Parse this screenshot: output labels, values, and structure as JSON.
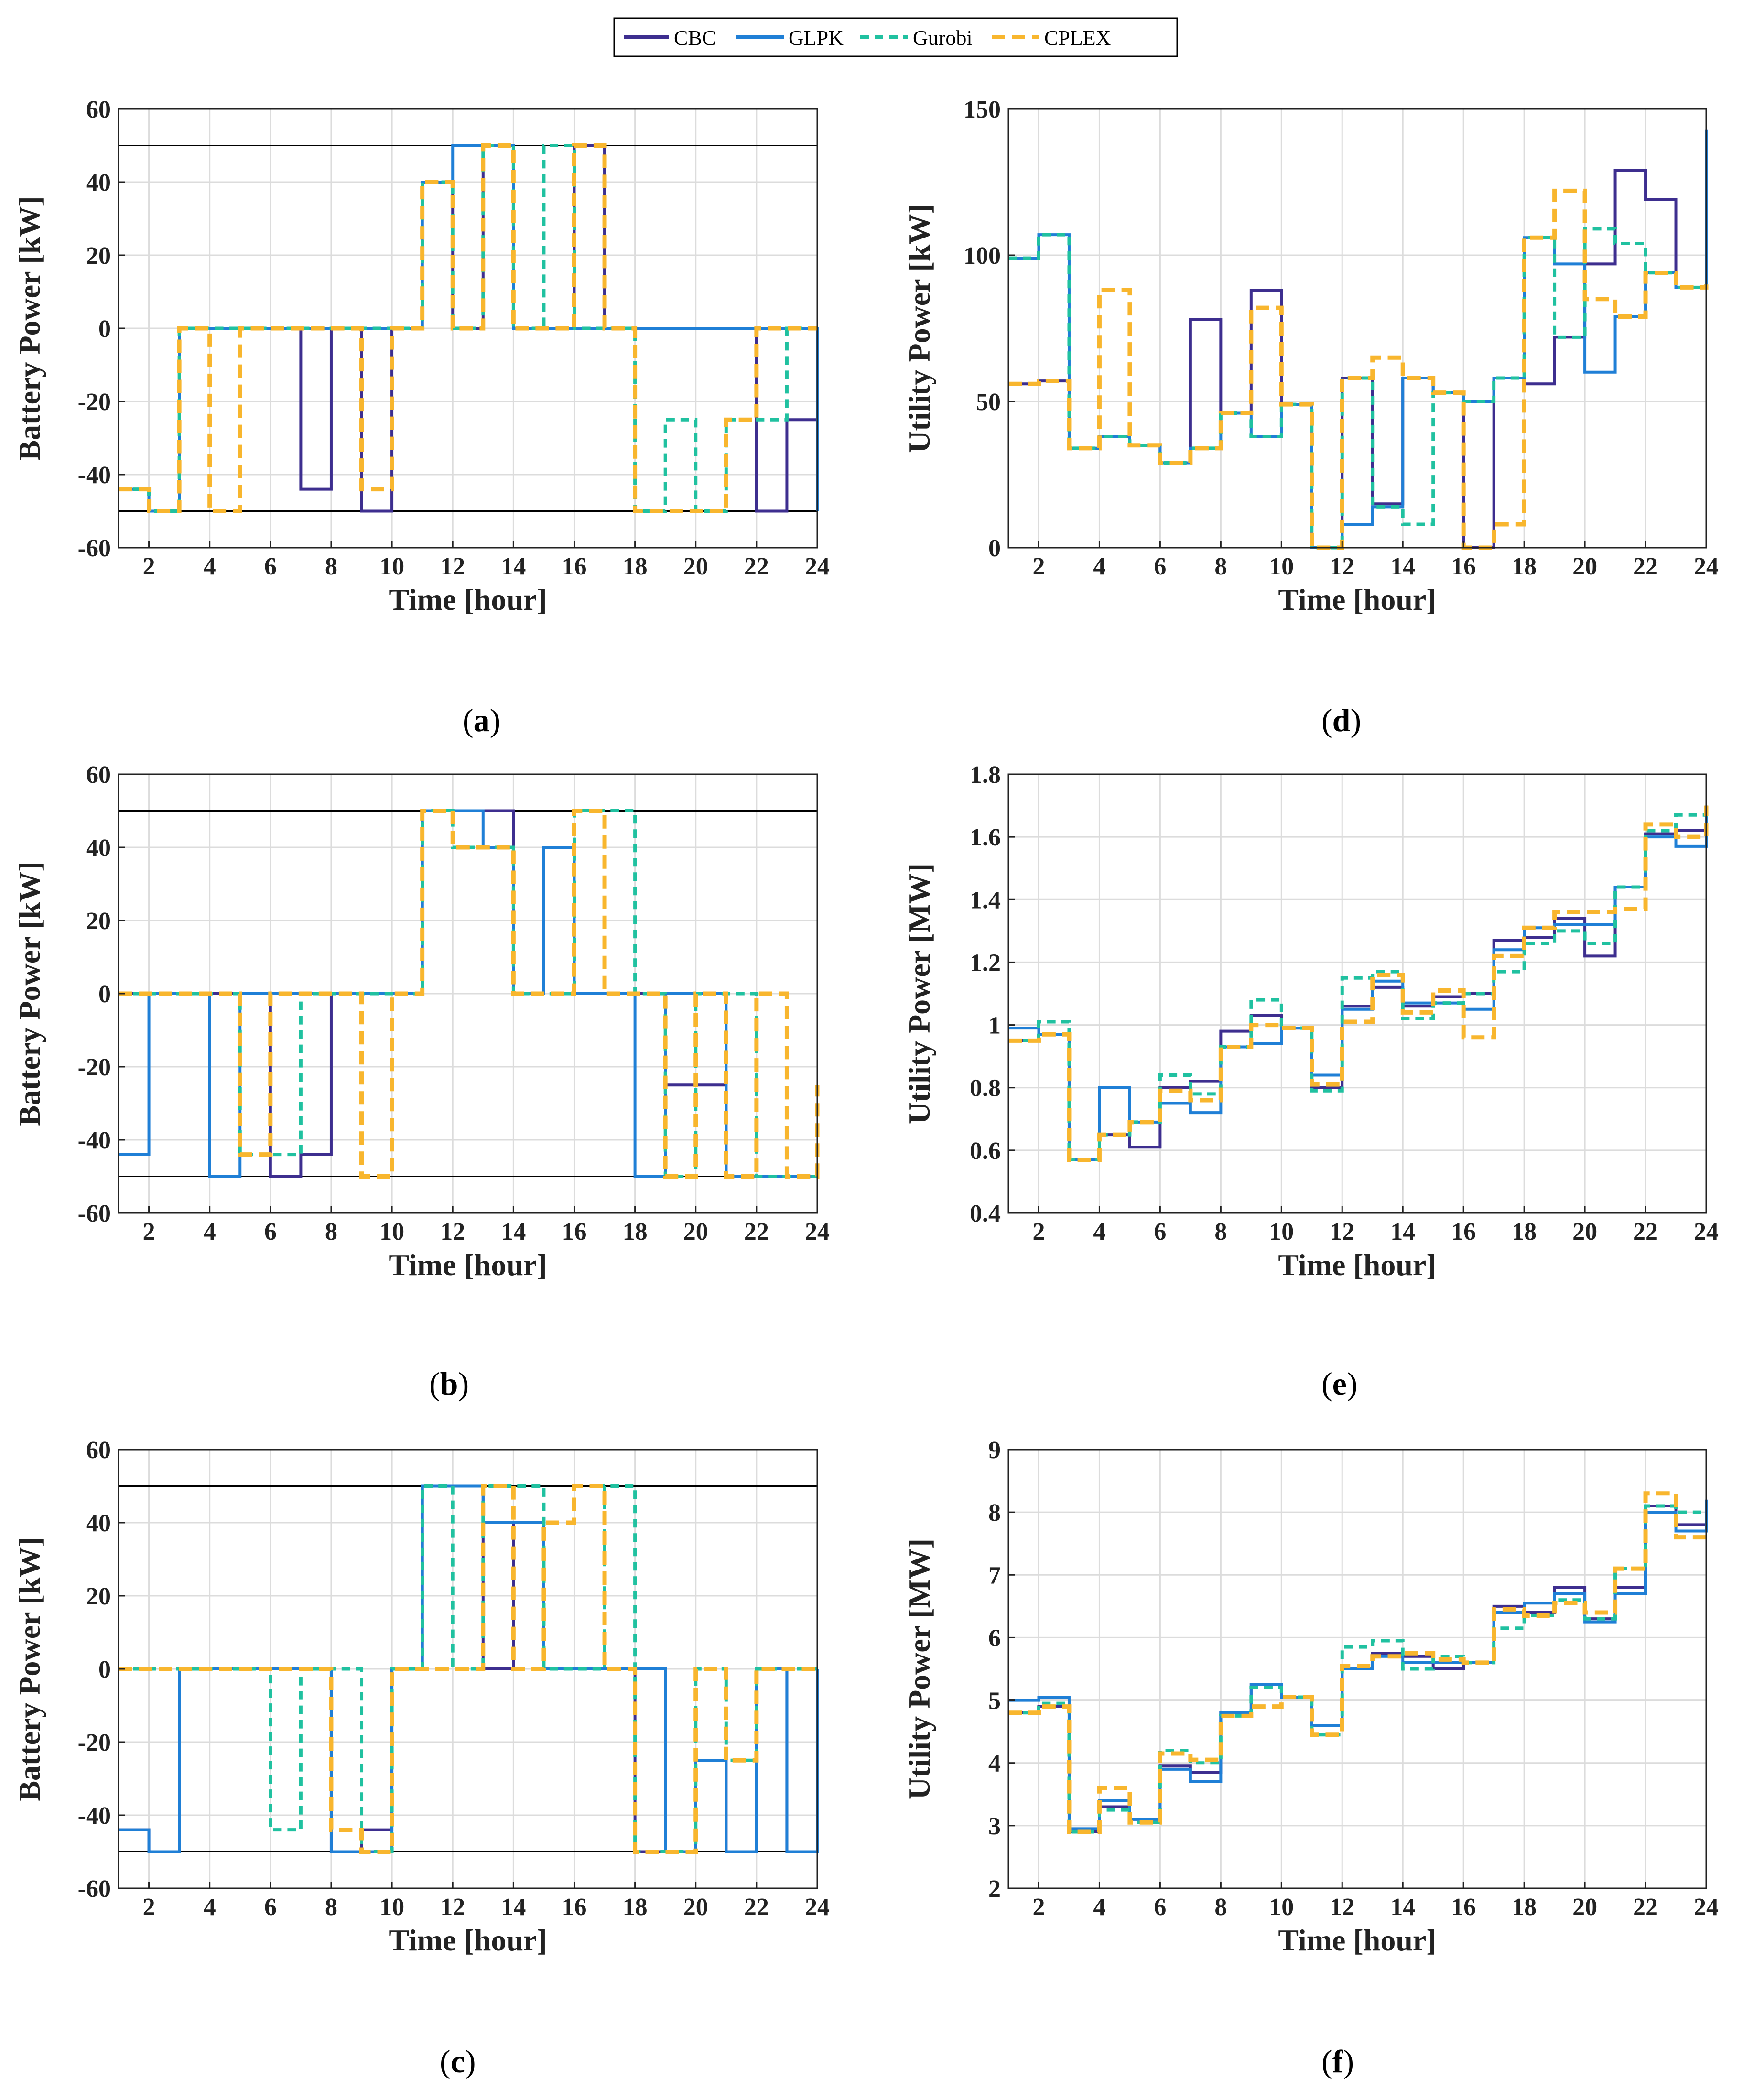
{
  "colors": {
    "CBC": "#3d2e8f",
    "GLPK": "#1f7fd6",
    "Gurobi": "#20c1a0",
    "CPLEX": "#f8b62e",
    "limit": "#000000",
    "grid": "#dcdcdc"
  },
  "legend": [
    {
      "key": "CBC",
      "label": "CBC",
      "dash": "solid"
    },
    {
      "key": "GLPK",
      "label": "GLPK",
      "dash": "solid"
    },
    {
      "key": "Gurobi",
      "label": "Gurobi",
      "dash": "dashed"
    },
    {
      "key": "CPLEX",
      "label": "CPLEX",
      "dash": "dashed"
    }
  ],
  "chart_data": [
    {
      "id": "a",
      "type": "line",
      "step": true,
      "caption_letter": "a",
      "caption": "(a)",
      "xlabel": "Time [hour]",
      "ylabel": "Battery Power [kW]",
      "xlim": [
        1,
        24
      ],
      "ylim": [
        -60,
        60
      ],
      "xticks": [
        2,
        4,
        6,
        8,
        10,
        12,
        14,
        16,
        18,
        20,
        22,
        24
      ],
      "yticks": [
        -60,
        -40,
        -20,
        0,
        20,
        40,
        60
      ],
      "ytick_labels": [
        "-60",
        "-40",
        "-20",
        "0",
        "20",
        "40",
        "60"
      ],
      "limits": [
        50,
        -50
      ],
      "x": [
        1,
        2,
        3,
        4,
        5,
        6,
        7,
        8,
        9,
        10,
        11,
        12,
        13,
        14,
        15,
        16,
        17,
        18,
        19,
        20,
        21,
        22,
        23,
        24
      ],
      "series": [
        {
          "name": "CBC",
          "values": [
            -44,
            -50,
            0,
            0,
            0,
            0,
            -44,
            0,
            -50,
            0,
            40,
            0,
            50,
            0,
            0,
            50,
            0,
            0,
            0,
            0,
            0,
            -50,
            -25,
            -50
          ]
        },
        {
          "name": "GLPK",
          "values": [
            -44,
            -50,
            0,
            0,
            0,
            0,
            0,
            0,
            0,
            0,
            40,
            50,
            50,
            0,
            0,
            0,
            0,
            0,
            0,
            0,
            0,
            0,
            0,
            -50
          ]
        },
        {
          "name": "Gurobi",
          "values": [
            -44,
            -50,
            0,
            0,
            0,
            0,
            0,
            0,
            0,
            0,
            40,
            0,
            50,
            0,
            50,
            0,
            0,
            -50,
            -25,
            -50,
            -25,
            -25,
            0,
            0
          ]
        },
        {
          "name": "CPLEX",
          "values": [
            -44,
            -50,
            0,
            -50,
            0,
            0,
            0,
            0,
            -44,
            0,
            40,
            0,
            50,
            0,
            0,
            50,
            0,
            -50,
            -50,
            -50,
            -25,
            0,
            0,
            0
          ]
        }
      ]
    },
    {
      "id": "b",
      "type": "line",
      "step": true,
      "caption_letter": "b",
      "caption": "(b)",
      "xlabel": "Time [hour]",
      "ylabel": "Battery Power [kW]",
      "xlim": [
        1,
        24
      ],
      "ylim": [
        -60,
        60
      ],
      "xticks": [
        2,
        4,
        6,
        8,
        10,
        12,
        14,
        16,
        18,
        20,
        22,
        24
      ],
      "yticks": [
        -60,
        -40,
        -20,
        0,
        20,
        40,
        60
      ],
      "ytick_labels": [
        "-60",
        "-40",
        "-20",
        "0",
        "20",
        "40",
        "60"
      ],
      "limits": [
        50,
        -50
      ],
      "x": [
        1,
        2,
        3,
        4,
        5,
        6,
        7,
        8,
        9,
        10,
        11,
        12,
        13,
        14,
        15,
        16,
        17,
        18,
        19,
        20,
        21,
        22,
        23,
        24
      ],
      "series": [
        {
          "name": "CBC",
          "values": [
            0,
            0,
            0,
            0,
            0,
            -50,
            -44,
            0,
            0,
            0,
            50,
            50,
            50,
            0,
            40,
            0,
            0,
            0,
            -25,
            -25,
            -50,
            -50,
            -50,
            -50
          ]
        },
        {
          "name": "GLPK",
          "values": [
            -44,
            0,
            0,
            -50,
            0,
            0,
            0,
            0,
            0,
            0,
            50,
            50,
            40,
            0,
            40,
            0,
            0,
            -50,
            0,
            0,
            -50,
            -50,
            -50,
            -50
          ]
        },
        {
          "name": "Gurobi",
          "values": [
            0,
            0,
            0,
            0,
            -44,
            -44,
            0,
            0,
            0,
            0,
            50,
            40,
            40,
            0,
            0,
            50,
            50,
            0,
            -50,
            0,
            0,
            -50,
            -50,
            -50
          ]
        },
        {
          "name": "CPLEX",
          "values": [
            0,
            0,
            0,
            0,
            -44,
            0,
            0,
            0,
            -50,
            0,
            50,
            40,
            40,
            0,
            0,
            50,
            0,
            0,
            -50,
            0,
            -50,
            0,
            -50,
            -25
          ]
        }
      ]
    },
    {
      "id": "c",
      "type": "line",
      "step": true,
      "caption_letter": "c",
      "caption": "(c)",
      "xlabel": "Time [hour]",
      "ylabel": "Battery Power [kW]",
      "xlim": [
        1,
        24
      ],
      "ylim": [
        -60,
        60
      ],
      "xticks": [
        2,
        4,
        6,
        8,
        10,
        12,
        14,
        16,
        18,
        20,
        22,
        24
      ],
      "yticks": [
        -60,
        -40,
        -20,
        0,
        20,
        40,
        60
      ],
      "ytick_labels": [
        "-60",
        "-40",
        "-20",
        "0",
        "20",
        "40",
        "60"
      ],
      "limits": [
        50,
        -50
      ],
      "x": [
        1,
        2,
        3,
        4,
        5,
        6,
        7,
        8,
        9,
        10,
        11,
        12,
        13,
        14,
        15,
        16,
        17,
        18,
        19,
        20,
        21,
        22,
        23,
        24
      ],
      "series": [
        {
          "name": "CBC",
          "values": [
            -44,
            -50,
            0,
            0,
            0,
            0,
            0,
            -50,
            -44,
            0,
            50,
            50,
            0,
            40,
            0,
            0,
            0,
            -50,
            -50,
            -25,
            -50,
            0,
            -50,
            0
          ]
        },
        {
          "name": "GLPK",
          "values": [
            -44,
            -50,
            0,
            0,
            0,
            0,
            0,
            -50,
            -50,
            0,
            50,
            50,
            40,
            40,
            0,
            0,
            0,
            0,
            -50,
            -25,
            -50,
            0,
            -50,
            0
          ]
        },
        {
          "name": "Gurobi",
          "values": [
            0,
            0,
            0,
            0,
            0,
            -44,
            0,
            0,
            -50,
            0,
            50,
            0,
            50,
            50,
            0,
            0,
            50,
            -50,
            -50,
            0,
            -25,
            0,
            0,
            0
          ]
        },
        {
          "name": "CPLEX",
          "values": [
            0,
            0,
            0,
            0,
            0,
            0,
            0,
            -44,
            -50,
            0,
            0,
            0,
            50,
            0,
            40,
            50,
            0,
            -50,
            -50,
            0,
            -25,
            0,
            0,
            0
          ]
        }
      ]
    },
    {
      "id": "d",
      "type": "line",
      "step": true,
      "caption_letter": "d",
      "caption": "(d)",
      "xlabel": "Time [hour]",
      "ylabel": "Utility Power [kW]",
      "xlim": [
        1,
        24
      ],
      "ylim": [
        0,
        150
      ],
      "xticks": [
        2,
        4,
        6,
        8,
        10,
        12,
        14,
        16,
        18,
        20,
        22,
        24
      ],
      "yticks": [
        0,
        50,
        100,
        150
      ],
      "ytick_labels": [
        "0",
        "50",
        "100",
        "150"
      ],
      "limits": [],
      "x": [
        1,
        2,
        3,
        4,
        5,
        6,
        7,
        8,
        9,
        10,
        11,
        12,
        13,
        14,
        15,
        16,
        17,
        18,
        19,
        20,
        21,
        22,
        23,
        24
      ],
      "series": [
        {
          "name": "CBC",
          "values": [
            56,
            57,
            34,
            38,
            35,
            29,
            78,
            46,
            88,
            49,
            0,
            58,
            15,
            58,
            53,
            0,
            58,
            56,
            72,
            97,
            129,
            119,
            89,
            143
          ]
        },
        {
          "name": "GLPK",
          "values": [
            99,
            107,
            34,
            38,
            35,
            29,
            34,
            46,
            38,
            49,
            0,
            8,
            14,
            58,
            53,
            50,
            58,
            106,
            97,
            60,
            79,
            94,
            89,
            143
          ]
        },
        {
          "name": "Gurobi",
          "values": [
            99,
            107,
            34,
            38,
            35,
            29,
            34,
            46,
            38,
            49,
            0,
            58,
            14,
            8,
            53,
            50,
            58,
            106,
            72,
            109,
            104,
            94,
            89,
            90
          ]
        },
        {
          "name": "CPLEX",
          "values": [
            56,
            57,
            34,
            88,
            35,
            29,
            34,
            46,
            82,
            49,
            0,
            58,
            65,
            58,
            53,
            0,
            8,
            106,
            122,
            85,
            79,
            94,
            89,
            90
          ]
        }
      ]
    },
    {
      "id": "e",
      "type": "line",
      "step": true,
      "caption_letter": "e",
      "caption": "(e)",
      "xlabel": "Time [hour]",
      "ylabel": "Utility Power [MW]",
      "xlim": [
        1,
        24
      ],
      "ylim": [
        0.4,
        1.8
      ],
      "xticks": [
        2,
        4,
        6,
        8,
        10,
        12,
        14,
        16,
        18,
        20,
        22,
        24
      ],
      "yticks": [
        0.4,
        0.6,
        0.8,
        1.0,
        1.2,
        1.4,
        1.6,
        1.8
      ],
      "ytick_labels": [
        "0.4",
        "0.6",
        "0.8",
        "1",
        "1.2",
        "1.4",
        "1.6",
        "1.8"
      ],
      "limits": [],
      "x": [
        1,
        2,
        3,
        4,
        5,
        6,
        7,
        8,
        9,
        10,
        11,
        12,
        13,
        14,
        15,
        16,
        17,
        18,
        19,
        20,
        21,
        22,
        23,
        24
      ],
      "series": [
        {
          "name": "CBC",
          "values": [
            0.95,
            0.97,
            0.57,
            0.65,
            0.61,
            0.8,
            0.82,
            0.98,
            1.03,
            0.99,
            0.8,
            1.06,
            1.12,
            1.06,
            1.09,
            1.1,
            1.27,
            1.28,
            1.34,
            1.22,
            1.44,
            1.61,
            1.62,
            1.7
          ]
        },
        {
          "name": "GLPK",
          "values": [
            0.99,
            0.97,
            0.57,
            0.8,
            0.69,
            0.75,
            0.72,
            0.93,
            0.94,
            0.99,
            0.84,
            1.05,
            1.14,
            1.07,
            1.07,
            1.05,
            1.24,
            1.31,
            1.32,
            1.32,
            1.44,
            1.6,
            1.57,
            1.7
          ]
        },
        {
          "name": "Gurobi",
          "values": [
            0.95,
            1.01,
            0.57,
            0.65,
            0.69,
            0.84,
            0.78,
            0.93,
            1.08,
            0.99,
            0.79,
            1.15,
            1.17,
            1.02,
            1.07,
            1.1,
            1.17,
            1.26,
            1.3,
            1.26,
            1.44,
            1.62,
            1.67,
            1.7
          ]
        },
        {
          "name": "CPLEX",
          "values": [
            0.95,
            0.97,
            0.57,
            0.65,
            0.69,
            0.79,
            0.76,
            0.93,
            1.0,
            0.99,
            0.81,
            1.01,
            1.16,
            1.04,
            1.11,
            0.96,
            1.22,
            1.31,
            1.36,
            1.36,
            1.37,
            1.64,
            1.6,
            1.7
          ]
        }
      ]
    },
    {
      "id": "f",
      "type": "line",
      "step": true,
      "caption_letter": "f",
      "caption": "(f)",
      "xlabel": "Time [hour]",
      "ylabel": "Utility Power [MW]",
      "xlim": [
        1,
        24
      ],
      "ylim": [
        2,
        9
      ],
      "xticks": [
        2,
        4,
        6,
        8,
        10,
        12,
        14,
        16,
        18,
        20,
        22,
        24
      ],
      "yticks": [
        2,
        3,
        4,
        5,
        6,
        7,
        8,
        9
      ],
      "ytick_labels": [
        "2",
        "3",
        "4",
        "5",
        "6",
        "7",
        "8",
        "9"
      ],
      "limits": [],
      "x": [
        1,
        2,
        3,
        4,
        5,
        6,
        7,
        8,
        9,
        10,
        11,
        12,
        13,
        14,
        15,
        16,
        17,
        18,
        19,
        20,
        21,
        22,
        23,
        24
      ],
      "series": [
        {
          "name": "CBC",
          "values": [
            4.8,
            4.9,
            2.9,
            3.3,
            3.1,
            3.95,
            3.85,
            4.8,
            5.25,
            5.05,
            4.6,
            5.5,
            5.75,
            5.7,
            5.5,
            5.6,
            6.5,
            6.4,
            6.8,
            6.3,
            6.8,
            8.1,
            7.8,
            8.2
          ]
        },
        {
          "name": "GLPK",
          "values": [
            5.0,
            5.05,
            2.95,
            3.4,
            3.1,
            3.9,
            3.7,
            4.8,
            5.25,
            5.05,
            4.6,
            5.5,
            5.7,
            5.6,
            5.6,
            5.6,
            6.4,
            6.55,
            6.7,
            6.25,
            6.7,
            8.0,
            7.7,
            8.2
          ]
        },
        {
          "name": "Gurobi",
          "values": [
            4.8,
            4.95,
            2.9,
            3.25,
            3.05,
            4.2,
            4.0,
            4.75,
            5.2,
            5.05,
            4.45,
            5.85,
            5.95,
            5.5,
            5.7,
            5.6,
            6.15,
            6.35,
            6.6,
            6.3,
            7.1,
            8.1,
            8.0,
            8.0
          ]
        },
        {
          "name": "CPLEX",
          "values": [
            4.8,
            4.9,
            2.9,
            3.6,
            3.05,
            4.15,
            4.05,
            4.75,
            4.9,
            5.05,
            4.45,
            5.55,
            5.7,
            5.75,
            5.65,
            5.6,
            6.45,
            6.35,
            6.55,
            6.4,
            7.1,
            8.3,
            7.6,
            7.7
          ]
        }
      ]
    }
  ]
}
